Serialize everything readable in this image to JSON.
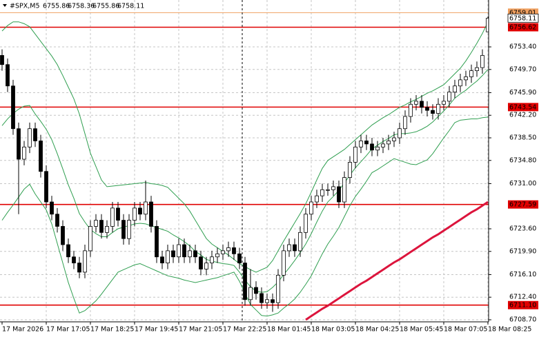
{
  "chart_data": {
    "type": "candlestick",
    "symbol": "#SPX,M5",
    "categories": [
      "17 Mar 2026",
      null,
      null,
      null,
      null,
      null,
      null,
      null,
      "17 Mar 17:05",
      null,
      null,
      null,
      null,
      null,
      null,
      null,
      "17 Mar 18:25",
      null,
      null,
      null,
      null,
      null,
      null,
      null,
      "17 Mar 19:45",
      null,
      null,
      null,
      null,
      null,
      null,
      null,
      "17 Mar 21:05",
      null,
      null,
      null,
      null,
      null,
      null,
      null,
      "17 Mar 22:25",
      null,
      null,
      null,
      null,
      null,
      null,
      null,
      "18 Mar 01:45",
      null,
      null,
      null,
      null,
      null,
      null,
      null,
      "18 Mar 03:05",
      null,
      null,
      null,
      null,
      null,
      null,
      null,
      "18 Mar 04:25",
      null,
      null,
      null,
      null,
      null,
      null,
      null,
      "18 Mar 05:45",
      null,
      null,
      null,
      null,
      null,
      null,
      null,
      "18 Mar 07:05",
      null,
      null,
      null,
      null,
      null,
      null,
      null,
      "18 Mar 08:25"
    ],
    "open": [
      6752,
      6750.5,
      6747,
      6740,
      6735,
      6737,
      6740,
      6738,
      6733,
      6728,
      6726,
      6724,
      6721,
      6719,
      6718,
      6716.5,
      6720,
      6724,
      6725,
      6723,
      6724,
      6727,
      6725,
      6722,
      6725,
      6727,
      6726,
      6728,
      6724,
      6719,
      6718,
      6720,
      6719,
      6721,
      6719,
      6720,
      6719,
      6717,
      6718,
      6719,
      6719.5,
      6720,
      6720.5,
      6719.5,
      6718,
      6712,
      6714,
      6713,
      6711.5,
      6712,
      6711.5,
      6716,
      6720,
      6721,
      6720,
      6723,
      6726,
      6728,
      6729,
      6730,
      6730,
      6730.5,
      6728,
      6732,
      6734.5,
      6737,
      6738,
      6737.5,
      6736.5,
      6737,
      6737.5,
      6738,
      6738.5,
      6740,
      6742,
      6744,
      6744.5,
      6743.5,
      6743,
      6742.5,
      6744,
      6744.5,
      6746,
      6747,
      6748,
      6748.5,
      6749.5,
      6750,
      6755.86
    ],
    "high": [
      6753,
      6751.5,
      6748,
      6741,
      6738,
      6741,
      6741,
      6739,
      6734,
      6729,
      6727,
      6725,
      6722,
      6720,
      6719,
      6721,
      6725,
      6726,
      6726,
      6725,
      6728,
      6728,
      6726,
      6726,
      6728,
      6728,
      6731.5,
      6729,
      6725,
      6720,
      6721,
      6721,
      6722,
      6722,
      6721,
      6721,
      6720,
      6719,
      6720,
      6720.5,
      6721,
      6721.5,
      6721.5,
      6720.5,
      6719,
      6717,
      6715,
      6714,
      6713,
      6713,
      6717,
      6721,
      6722,
      6722,
      6724,
      6727,
      6729,
      6730,
      6731,
      6731,
      6731.5,
      6731.5,
      6733,
      6735.5,
      6738,
      6739,
      6739,
      6738.5,
      6738,
      6738.5,
      6739,
      6739.5,
      6741,
      6743,
      6745,
      6745.5,
      6745.5,
      6744.5,
      6744,
      6745,
      6745.5,
      6747,
      6748,
      6749,
      6749.5,
      6750.5,
      6751,
      6753,
      6758.36
    ],
    "low": [
      6749.5,
      6746,
      6739,
      6726,
      6734,
      6736,
      6737,
      6732,
      6727,
      6725,
      6723,
      6720,
      6718,
      6717,
      6715.5,
      6715.5,
      6719,
      6723,
      6722,
      6722,
      6723,
      6724,
      6721,
      6721,
      6724,
      6725,
      6725,
      6723,
      6718,
      6717,
      6717,
      6718,
      6718,
      6718,
      6718,
      6718,
      6716,
      6716,
      6717,
      6718,
      6718.5,
      6719,
      6718.5,
      6717,
      6711,
      6711,
      6712,
      6710.5,
      6710.5,
      6710,
      6710.5,
      6715,
      6719,
      6719,
      6719,
      6722,
      6725,
      6727,
      6728,
      6729,
      6729,
      6727,
      6727,
      6731,
      6733.5,
      6736,
      6736.5,
      6735.5,
      6735.5,
      6736,
      6736.5,
      6737,
      6737.5,
      6739,
      6741,
      6743,
      6742.5,
      6742,
      6741.5,
      6741.5,
      6743,
      6743.5,
      6745,
      6746,
      6747,
      6747.5,
      6748.5,
      6749,
      6755.86
    ],
    "close": [
      6750.5,
      6747,
      6740,
      6735,
      6737,
      6740,
      6738,
      6733,
      6728,
      6726,
      6724,
      6721,
      6719,
      6718,
      6716.5,
      6720,
      6724,
      6725,
      6723,
      6724,
      6727,
      6725,
      6722,
      6725,
      6727,
      6726,
      6728,
      6724,
      6719,
      6718,
      6720,
      6719,
      6721,
      6719,
      6720,
      6719,
      6717,
      6718,
      6719,
      6719.5,
      6720,
      6720.5,
      6719.5,
      6718,
      6712,
      6714,
      6713,
      6711.5,
      6712,
      6711.5,
      6716,
      6720,
      6721,
      6720,
      6723,
      6726,
      6728,
      6729,
      6730,
      6730,
      6730.5,
      6728,
      6732,
      6734.5,
      6737,
      6738,
      6737.5,
      6736.5,
      6737,
      6737.5,
      6738,
      6738.5,
      6740,
      6742,
      6744,
      6744.5,
      6743.5,
      6743,
      6742.5,
      6744,
      6744.5,
      6746,
      6747,
      6748,
      6748.5,
      6749.5,
      6750,
      6752,
      6758.11
    ],
    "bull_color": "#ffffff",
    "bear_color": "#000000",
    "bands": {
      "color": "#2e9e4f",
      "upper": [
        6756,
        6756.9,
        6757.5,
        6757.5,
        6757.2,
        6756.7,
        6755.5,
        6754.3,
        6753.1,
        6751.9,
        6750.5,
        6748.7,
        6746.8,
        6744.9,
        6742.4,
        6739.2,
        6736,
        6733.8,
        6731.6,
        6730.5,
        6730.6,
        6730.7,
        6730.8,
        6730.9,
        6731,
        6731.1,
        6731.2,
        6731,
        6730.9,
        6730.7,
        6730.4,
        6729.5,
        6728.6,
        6727.7,
        6726.5,
        6725,
        6723.5,
        6722,
        6721.1,
        6720.5,
        6719.9,
        6719.3,
        6718.6,
        6717.9,
        6717.4,
        6716.9,
        6716.5,
        6716.9,
        6717.3,
        6718.4,
        6720,
        6721.6,
        6723.1,
        6724.6,
        6726.1,
        6727.7,
        6729.6,
        6731.6,
        6733.5,
        6734.8,
        6735.4,
        6736,
        6736.6,
        6737.4,
        6738.2,
        6739,
        6739.8,
        6740.6,
        6741.2,
        6741.8,
        6742.3,
        6742.9,
        6743.5,
        6743.9,
        6744.4,
        6744.8,
        6745.3,
        6745.8,
        6746.2,
        6746.7,
        6747.2,
        6748.1,
        6749,
        6749.9,
        6751.1,
        6752.5,
        6754,
        6755.6,
        6757.5
      ],
      "middle": [
        6740.5,
        6741.6,
        6742.5,
        6743.2,
        6743.7,
        6743.8,
        6742.4,
        6741.2,
        6739.9,
        6738.2,
        6735.9,
        6733.4,
        6730.8,
        6728.6,
        6726.1,
        6724.7,
        6723.5,
        6722.8,
        6722.3,
        6722.3,
        6723,
        6723.6,
        6723.9,
        6724.1,
        6724.4,
        6724.5,
        6724.4,
        6724.1,
        6723.8,
        6723.5,
        6723.2,
        6722.6,
        6722.1,
        6721.5,
        6720.8,
        6719.9,
        6719.3,
        6718.6,
        6718.3,
        6718.1,
        6717.9,
        6717.8,
        6717.6,
        6716.5,
        6715.2,
        6714.1,
        6713.4,
        6713.2,
        6713.3,
        6714,
        6714.9,
        6716.1,
        6717.2,
        6718.4,
        6719.7,
        6721.1,
        6722.8,
        6724.7,
        6726.5,
        6728,
        6728.9,
        6729.9,
        6731.1,
        6732.4,
        6733.6,
        6734.6,
        6735.6,
        6736.7,
        6737.3,
        6737.9,
        6738.4,
        6739,
        6739.2,
        6739.2,
        6739.3,
        6739.5,
        6739.9,
        6740.4,
        6741.1,
        6742,
        6742.9,
        6743.9,
        6745,
        6745.7,
        6746.3,
        6747.1,
        6747.8,
        6748.7,
        6749.7
      ],
      "lower": [
        6725,
        6726.3,
        6727.5,
        6728.8,
        6730.1,
        6730.9,
        6729.3,
        6728,
        6726.7,
        6724.4,
        6721.2,
        6718,
        6714.8,
        6712.2,
        6709.8,
        6710.2,
        6711,
        6711.8,
        6712.9,
        6714.1,
        6715.3,
        6716.5,
        6716.9,
        6717.3,
        6717.7,
        6717.9,
        6717.5,
        6717.1,
        6716.7,
        6716.3,
        6715.9,
        6715.7,
        6715.5,
        6715.2,
        6715,
        6714.8,
        6715,
        6715.2,
        6715.4,
        6715.6,
        6715.9,
        6716.2,
        6716.5,
        6715,
        6713,
        6711.2,
        6710.3,
        6709.4,
        6709.3,
        6709.5,
        6709.8,
        6710.6,
        6711.3,
        6712.1,
        6713.2,
        6714.5,
        6715.9,
        6717.7,
        6719.5,
        6721.1,
        6722.4,
        6723.8,
        6725.6,
        6727.4,
        6728.9,
        6730.1,
        6731.4,
        6732.8,
        6733.3,
        6733.9,
        6734.5,
        6735.1,
        6734.8,
        6734.5,
        6734.2,
        6734.1,
        6734.5,
        6734.9,
        6735.9,
        6737.2,
        6738.5,
        6739.7,
        6741,
        6741.4,
        6741.5,
        6741.6,
        6741.6,
        6741.8,
        6741.9
      ]
    },
    "ma": {
      "color": "#dc143c",
      "values": [
        null,
        null,
        null,
        null,
        null,
        null,
        null,
        null,
        null,
        null,
        null,
        null,
        null,
        null,
        null,
        null,
        null,
        null,
        null,
        null,
        null,
        null,
        null,
        null,
        null,
        null,
        null,
        null,
        null,
        null,
        null,
        null,
        null,
        null,
        null,
        null,
        null,
        null,
        null,
        null,
        null,
        null,
        null,
        null,
        null,
        null,
        null,
        null,
        null,
        null,
        null,
        null,
        null,
        null,
        null,
        6708.7,
        6709.3,
        6709.9,
        6710.5,
        6711.0,
        6711.6,
        6712.2,
        6712.8,
        6713.4,
        6714.0,
        6714.6,
        6715.1,
        6715.7,
        6716.3,
        6716.9,
        6717.5,
        6718.1,
        6718.6,
        6719.2,
        6719.8,
        6720.4,
        6721.0,
        6721.6,
        6722.2,
        6722.7,
        6723.3,
        6723.9,
        6724.5,
        6725.1,
        6725.7,
        6726.3,
        6726.8,
        6727.4,
        6728.0
      ]
    },
    "levels": [
      {
        "value": 6759.01,
        "label": "6759.01",
        "color": "#f0a060"
      },
      {
        "value": 6756.62,
        "label": "6756.62",
        "color": "#e00000"
      },
      {
        "value": 6743.54,
        "label": "6743.54",
        "color": "#e00000"
      },
      {
        "value": 6727.59,
        "label": "6727.59",
        "color": "#e00000"
      },
      {
        "value": 6711.1,
        "label": "6711.10",
        "color": "#e00000"
      }
    ],
    "ylim": [
      6708.36,
      6761.08
    ],
    "yticks": [
      {
        "value": 6753.4,
        "label": "6753.40"
      },
      {
        "value": 6749.7,
        "label": "6749.70"
      },
      {
        "value": 6745.9,
        "label": "6745.90"
      },
      {
        "value": 6742.2,
        "label": "6742.20"
      },
      {
        "value": 6738.5,
        "label": "6738.50"
      },
      {
        "value": 6734.8,
        "label": "6734.80"
      },
      {
        "value": 6731,
        "label": "6731.00"
      },
      {
        "value": 6723.6,
        "label": "6723.60"
      },
      {
        "value": 6719.9,
        "label": "6719.90"
      },
      {
        "value": 6716.1,
        "label": "6716.10"
      },
      {
        "value": 6712.4,
        "label": "6712.40"
      },
      {
        "value": 6708.7,
        "label": "6708.70"
      }
    ],
    "grid": true,
    "grid_color": "#c4c4c4"
  }
}
